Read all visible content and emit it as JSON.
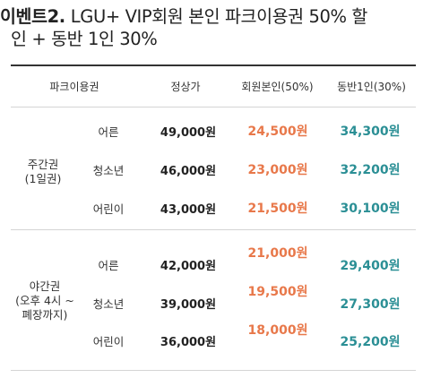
{
  "title": {
    "event": "이벤트2.",
    "line1": "LGU+ VIP회원 본인 파크이용권 50% 할",
    "line2": "인 + 동반 1인 30%"
  },
  "table": {
    "headers": [
      "파크이용권",
      "정상가",
      "회원본인(50%)",
      "동반1인(30%)"
    ],
    "groups": [
      {
        "label_line1": "주간권",
        "label_line2": "(1일권)",
        "rows": [
          {
            "type": "어른",
            "normal": "49,000원",
            "member": "24,500원",
            "companion": "34,300원"
          },
          {
            "type": "청소년",
            "normal": "46,000원",
            "member": "23,000원",
            "companion": "32,200원"
          },
          {
            "type": "어린이",
            "normal": "43,000원",
            "member": "21,500원",
            "companion": "30,100원"
          }
        ]
      },
      {
        "label_line1": "야간권",
        "label_line2": "(오후 4시 ~",
        "label_line3": "폐장까지)",
        "rows": [
          {
            "type": "어른",
            "normal": "42,000원",
            "member": "21,000원",
            "companion": "29,400원"
          },
          {
            "type": "청소년",
            "normal": "39,000원",
            "member": "19,500원",
            "companion": "27,300원"
          },
          {
            "type": "어린이",
            "normal": "36,000원",
            "member": "18,000원",
            "companion": "25,200원"
          }
        ]
      }
    ]
  },
  "colors": {
    "member": "#e8784a",
    "companion": "#2b8f95"
  }
}
